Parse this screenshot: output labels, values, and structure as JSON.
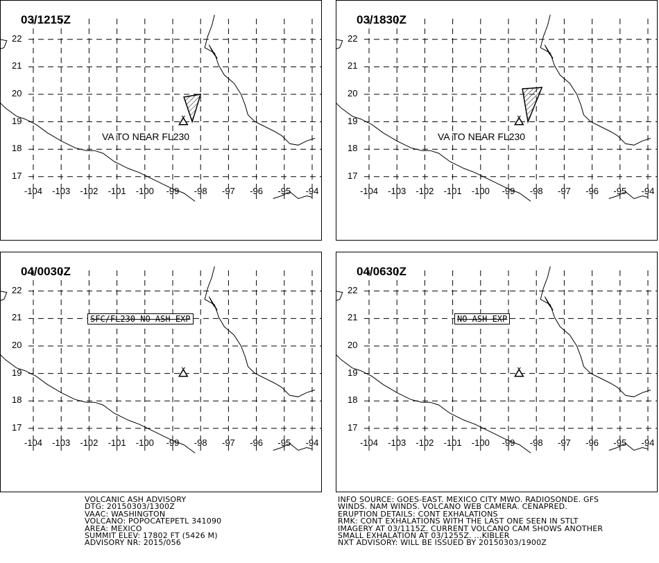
{
  "panels": [
    {
      "id": "p1",
      "title": "03/1215Z",
      "va_text": "VA TO NEAR FL230",
      "box_text": "",
      "ash_polygon": [
        [
          -98.3,
          19.0
        ],
        [
          -98.6,
          19.9
        ],
        [
          -98.0,
          20.0
        ]
      ],
      "has_ash": true
    },
    {
      "id": "p2",
      "title": "03/1830Z",
      "va_text": "VA TO NEAR FL230",
      "box_text": "",
      "ash_polygon": [
        [
          -98.3,
          19.0
        ],
        [
          -98.5,
          20.2
        ],
        [
          -97.8,
          20.25
        ]
      ],
      "has_ash": true
    },
    {
      "id": "p3",
      "title": "04/0030Z",
      "va_text": "",
      "box_text": "SFC/FL230 NO ASH EXP",
      "ash_polygon": [],
      "has_ash": false
    },
    {
      "id": "p4",
      "title": "04/0630Z",
      "va_text": "",
      "box_text": "NO ASH EXP",
      "ash_polygon": [],
      "has_ash": false
    }
  ],
  "axes": {
    "lat_labels": [
      "22",
      "21",
      "20",
      "19",
      "18",
      "17"
    ],
    "lat_values": [
      22,
      21,
      20,
      19,
      18,
      17
    ],
    "lon_labels": [
      "-104",
      "-103",
      "-102",
      "-101",
      "-100",
      "-99",
      "-98",
      "-97",
      "-96",
      "-95",
      "-94"
    ],
    "lon_values": [
      -104,
      -103,
      -102,
      -101,
      -100,
      -99,
      -98,
      -97,
      -96,
      -95,
      -94
    ]
  },
  "volcano": {
    "lat": 19.02,
    "lon": -98.62
  },
  "advisory_left": [
    "VOLCANIC ASH ADVISORY",
    "DTG: 20150303/1300Z",
    "VAAC: WASHINGTON",
    "VOLCANO: POPOCATEPETL 341090",
    "AREA: MEXICO",
    "SUMMIT ELEV: 17802 FT (5426 M)",
    "ADVISORY NR: 2015/056"
  ],
  "advisory_right": [
    "INFO SOURCE: GOES-EAST. MEXICO CITY MWO. RADIOSONDE. GFS",
    "WINDS. NAM WINDS. VOLCANO WEB CAMERA. CENAPRED.",
    "ERUPTION DETAILS: CONT EXHALATIONS",
    "RMK: CONT EXHALATIONS WITH THE LAST ONE SEEN IN STLT",
    "IMAGERY AT 03/1115Z. CURRENT VOLCANO CAM SHOWS ANOTHER",
    "SMALL EXHALATION AT 03/1255Z. ...KIBLER",
    "NXT ADVISORY: WILL BE ISSUED BY 20150303/1900Z"
  ],
  "colors": {
    "line": "#000000",
    "background": "#ffffff"
  }
}
